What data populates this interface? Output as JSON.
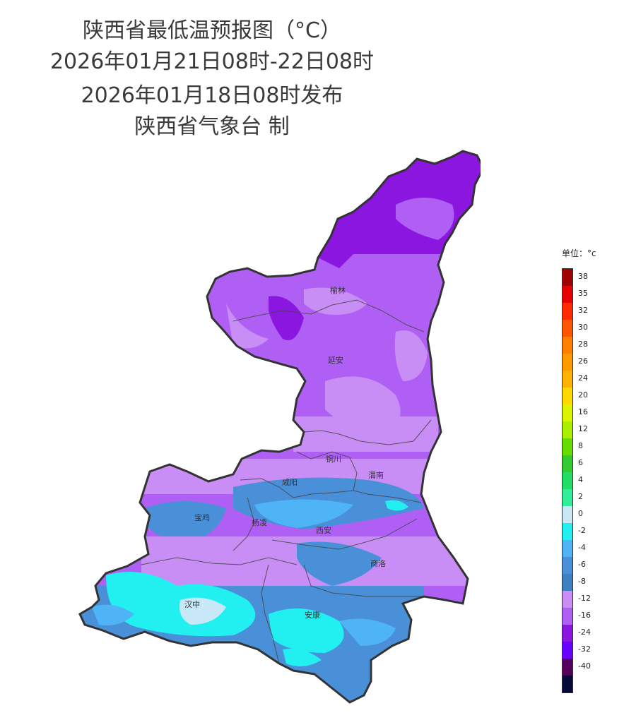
{
  "title": {
    "line1": "陕西省最低温预报图（°C）",
    "line2": "2026年01月21日08时-22日08时",
    "line3": "2026年01月18日08时发布",
    "line4": "陕西省气象台 制"
  },
  "legend": {
    "unit": "单位：°c",
    "entries": [
      {
        "label": "38",
        "color": "#a00000"
      },
      {
        "label": "35",
        "color": "#e60000"
      },
      {
        "label": "32",
        "color": "#ff2a00"
      },
      {
        "label": "30",
        "color": "#ff5500"
      },
      {
        "label": "28",
        "color": "#ff7f00"
      },
      {
        "label": "26",
        "color": "#ff9900"
      },
      {
        "label": "24",
        "color": "#ffb300"
      },
      {
        "label": "20",
        "color": "#ffd900"
      },
      {
        "label": "16",
        "color": "#d9f500"
      },
      {
        "label": "12",
        "color": "#aaee00"
      },
      {
        "label": "8",
        "color": "#66dd00"
      },
      {
        "label": "6",
        "color": "#33cc33"
      },
      {
        "label": "4",
        "color": "#22dd66"
      },
      {
        "label": "2",
        "color": "#33ee99"
      },
      {
        "label": "0",
        "color": "#c8e8f8"
      },
      {
        "label": "-2",
        "color": "#22f0f0"
      },
      {
        "label": "-4",
        "color": "#4fb4f5"
      },
      {
        "label": "-6",
        "color": "#4a90d8"
      },
      {
        "label": "-8",
        "color": "#3d7fc0"
      },
      {
        "label": "-12",
        "color": "#c88ef5"
      },
      {
        "label": "-16",
        "color": "#b05ff5"
      },
      {
        "label": "-24",
        "color": "#8a16e0"
      },
      {
        "label": "-32",
        "color": "#6a00ff"
      },
      {
        "label": "-40",
        "color": "#55005f"
      },
      {
        "label": "",
        "color": "#050a3a"
      }
    ]
  },
  "cities": [
    {
      "id": "yulin",
      "name": "榆林"
    },
    {
      "id": "yanan",
      "name": "延安"
    },
    {
      "id": "tongchuan",
      "name": "铜川"
    },
    {
      "id": "weinan",
      "name": "渭南"
    },
    {
      "id": "xianyang",
      "name": "咸阳"
    },
    {
      "id": "baoji",
      "name": "宝鸡"
    },
    {
      "id": "yangling",
      "name": "杨凌"
    },
    {
      "id": "xian",
      "name": "西安"
    },
    {
      "id": "shangluo",
      "name": "商洛"
    },
    {
      "id": "hanzhong",
      "name": "汉中"
    },
    {
      "id": "ankang",
      "name": "安康"
    }
  ]
}
